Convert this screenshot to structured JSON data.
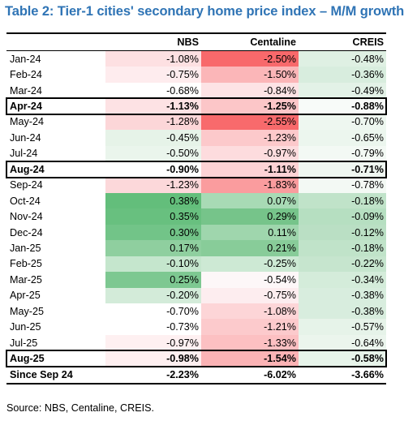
{
  "title": "Table 2: Tier-1 cities' secondary home price index – M/M growth",
  "columns": [
    "",
    "NBS",
    "Centaline",
    "CREIS"
  ],
  "rows": [
    {
      "month": "Jan-24",
      "values": [
        "-1.08%",
        "-2.50%",
        "-0.48%"
      ],
      "highlight": false,
      "colors": [
        "#fde0e2",
        "#f8696b",
        "#dff0e3"
      ]
    },
    {
      "month": "Feb-24",
      "values": [
        "-0.75%",
        "-1.50%",
        "-0.36%"
      ],
      "highlight": false,
      "colors": [
        "#feecee",
        "#fbb6b8",
        "#d8edde"
      ]
    },
    {
      "month": "Mar-24",
      "values": [
        "-0.68%",
        "-0.84%",
        "-0.49%"
      ],
      "highlight": false,
      "colors": [
        "#ffffff",
        "#fde3e5",
        "#e3f2e7"
      ]
    },
    {
      "month": "Apr-24",
      "values": [
        "-1.13%",
        "-1.25%",
        "-0.88%"
      ],
      "highlight": true,
      "colors": [
        "#fde2e4",
        "#fcc6c8",
        "#f8fbf9"
      ]
    },
    {
      "month": "May-24",
      "values": [
        "-1.28%",
        "-2.55%",
        "-0.70%"
      ],
      "highlight": false,
      "colors": [
        "#fcd6d8",
        "#f86a6c",
        "#eef7f0"
      ]
    },
    {
      "month": "Jun-24",
      "values": [
        "-0.45%",
        "-1.23%",
        "-0.65%"
      ],
      "highlight": false,
      "colors": [
        "#e6f3e8",
        "#fcc9cb",
        "#ecf6ee"
      ]
    },
    {
      "month": "Jul-24",
      "values": [
        "-0.50%",
        "-0.97%",
        "-0.79%"
      ],
      "highlight": false,
      "colors": [
        "#eaf5ec",
        "#fddcde",
        "#f3f9f4"
      ]
    },
    {
      "month": "Aug-24",
      "values": [
        "-0.90%",
        "-1.11%",
        "-0.71%"
      ],
      "highlight": true,
      "colors": [
        "#ffffff",
        "#fdd3d5",
        "#eff7f1"
      ]
    },
    {
      "month": "Sep-24",
      "values": [
        "-1.23%",
        "-1.83%",
        "-0.78%"
      ],
      "highlight": false,
      "colors": [
        "#fcd8da",
        "#fa9c9e",
        "#f3f9f4"
      ]
    },
    {
      "month": "Oct-24",
      "values": [
        "0.38%",
        "0.07%",
        "-0.18%"
      ],
      "highlight": false,
      "colors": [
        "#63be7b",
        "#a8dab5",
        "#c0e3c9"
      ]
    },
    {
      "month": "Nov-24",
      "values": [
        "0.35%",
        "0.29%",
        "-0.09%"
      ],
      "highlight": false,
      "colors": [
        "#68c07f",
        "#76c48a",
        "#b6dfc1"
      ]
    },
    {
      "month": "Dec-24",
      "values": [
        "0.30%",
        "0.11%",
        "-0.12%"
      ],
      "highlight": false,
      "colors": [
        "#72c488",
        "#9fd6ad",
        "#badfc4"
      ]
    },
    {
      "month": "Jan-25",
      "values": [
        "0.17%",
        "0.21%",
        "-0.18%"
      ],
      "highlight": false,
      "colors": [
        "#8fcf9f",
        "#88cc99",
        "#c0e3c9"
      ]
    },
    {
      "month": "Feb-25",
      "values": [
        "-0.10%",
        "-0.25%",
        "-0.22%"
      ],
      "highlight": false,
      "colors": [
        "#c5e6cd",
        "#cde9d4",
        "#c6e5ce"
      ]
    },
    {
      "month": "Mar-25",
      "values": [
        "0.25%",
        "-0.54%",
        "-0.34%"
      ],
      "highlight": false,
      "colors": [
        "#7dc891",
        "#fdf7f8",
        "#d4ecda"
      ]
    },
    {
      "month": "Apr-25",
      "values": [
        "-0.20%",
        "-0.75%",
        "-0.38%"
      ],
      "highlight": false,
      "colors": [
        "#d3ebd9",
        "#fdedef",
        "#d8edde"
      ]
    },
    {
      "month": "May-25",
      "values": [
        "-0.70%",
        "-1.08%",
        "-0.38%"
      ],
      "highlight": false,
      "colors": [
        "#ffffff",
        "#fdd5d7",
        "#d8edde"
      ]
    },
    {
      "month": "Jun-25",
      "values": [
        "-0.73%",
        "-1.21%",
        "-0.57%"
      ],
      "highlight": false,
      "colors": [
        "#ffffff",
        "#fccacc",
        "#e6f3e9"
      ]
    },
    {
      "month": "Jul-25",
      "values": [
        "-0.97%",
        "-1.33%",
        "-0.64%"
      ],
      "highlight": false,
      "colors": [
        "#fef0f1",
        "#fcc0c2",
        "#ebf5ed"
      ]
    },
    {
      "month": "Aug-25",
      "values": [
        "-0.98%",
        "-1.54%",
        "-0.58%"
      ],
      "highlight": true,
      "colors": [
        "#feeff0",
        "#fbb3b5",
        "#e7f4ea"
      ]
    }
  ],
  "total": {
    "label": "Since Sep 24",
    "values": [
      "-2.23%",
      "-6.02%",
      "-3.66%"
    ]
  },
  "source": "Source: NBS, Centaline, CREIS."
}
